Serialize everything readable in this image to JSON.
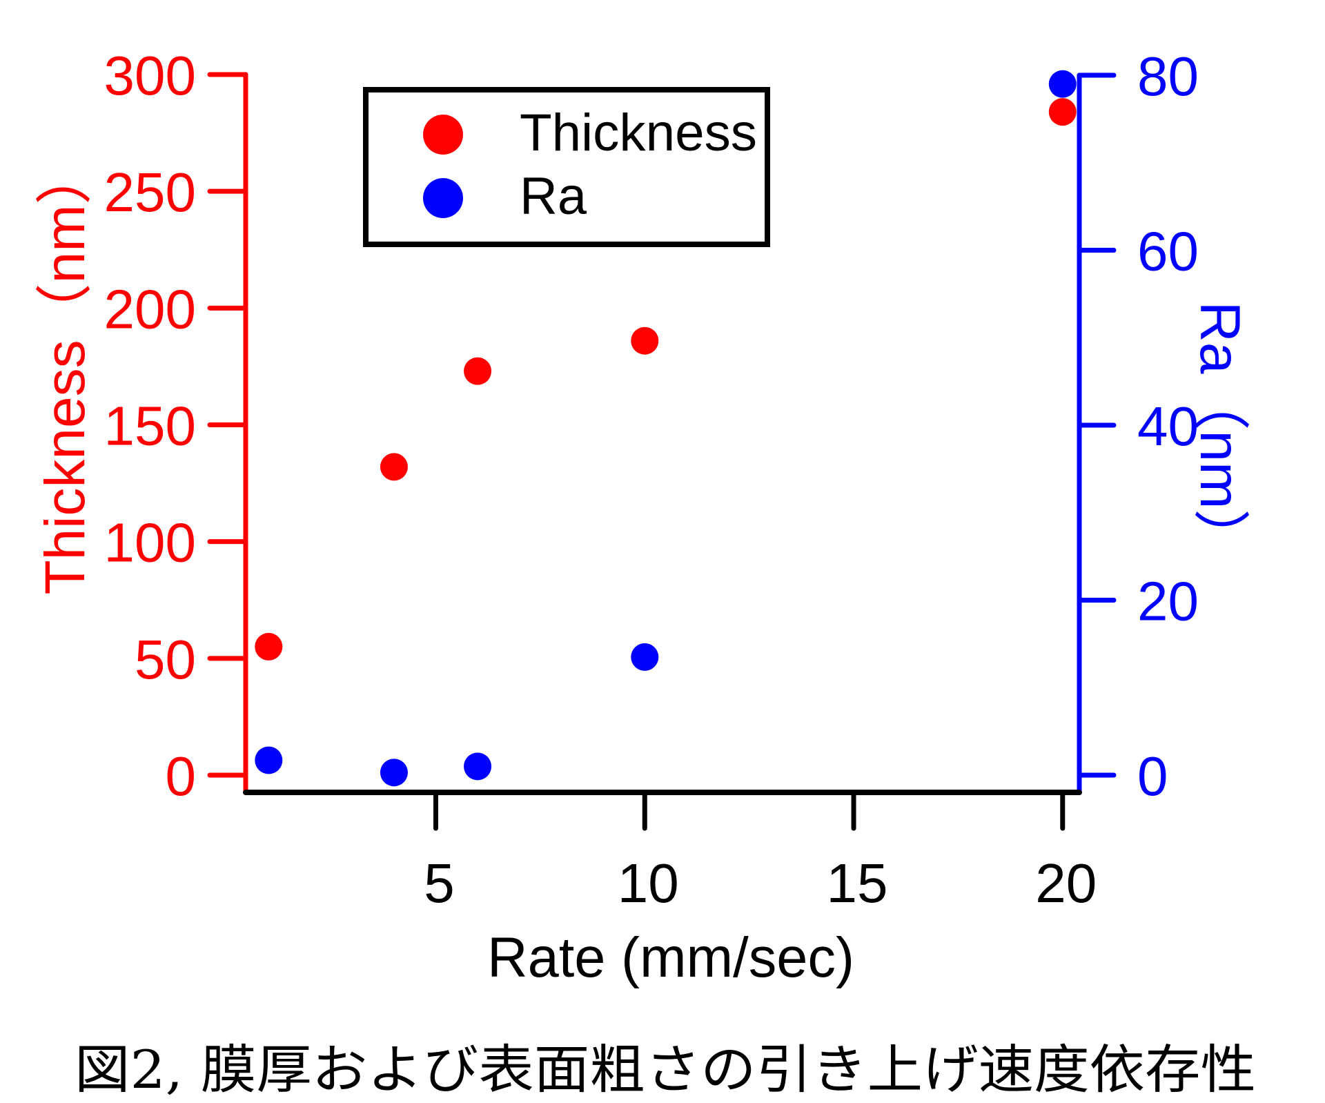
{
  "chart_data": {
    "type": "scatter",
    "title": "",
    "caption": "図2, 膜厚および表面粗さの引き上げ速度依存性",
    "xlabel": "Rate (mm/sec)",
    "ylabel_left": "Thickness（nm）",
    "ylabel_right": "Ra（nm）",
    "xlim": [
      0.45,
      20.4
    ],
    "ylim_left": [
      -7.4,
      300
    ],
    "ylim_right": [
      -2,
      80
    ],
    "x_ticks": [
      5,
      10,
      15,
      20
    ],
    "y_ticks_left": [
      0,
      50,
      100,
      150,
      200,
      250,
      300
    ],
    "y_ticks_right": [
      0,
      20,
      40,
      60,
      80
    ],
    "grid": false,
    "legend_position": "top-left",
    "series": [
      {
        "name": "Thickness",
        "axis": "left",
        "color": "#ff0000",
        "x": [
          1,
          4,
          6,
          10,
          20
        ],
        "y": [
          55,
          132,
          173,
          186,
          284
        ]
      },
      {
        "name": "Ra",
        "axis": "right",
        "color": "#0000ff",
        "x": [
          1,
          4,
          6,
          10,
          20
        ],
        "y": [
          1.7,
          0.3,
          1.0,
          13.5,
          79
        ]
      }
    ],
    "colors": {
      "left_axis": "#ff0000",
      "right_axis": "#0000ff",
      "x_axis": "#000000",
      "legend_border": "#000000"
    }
  }
}
